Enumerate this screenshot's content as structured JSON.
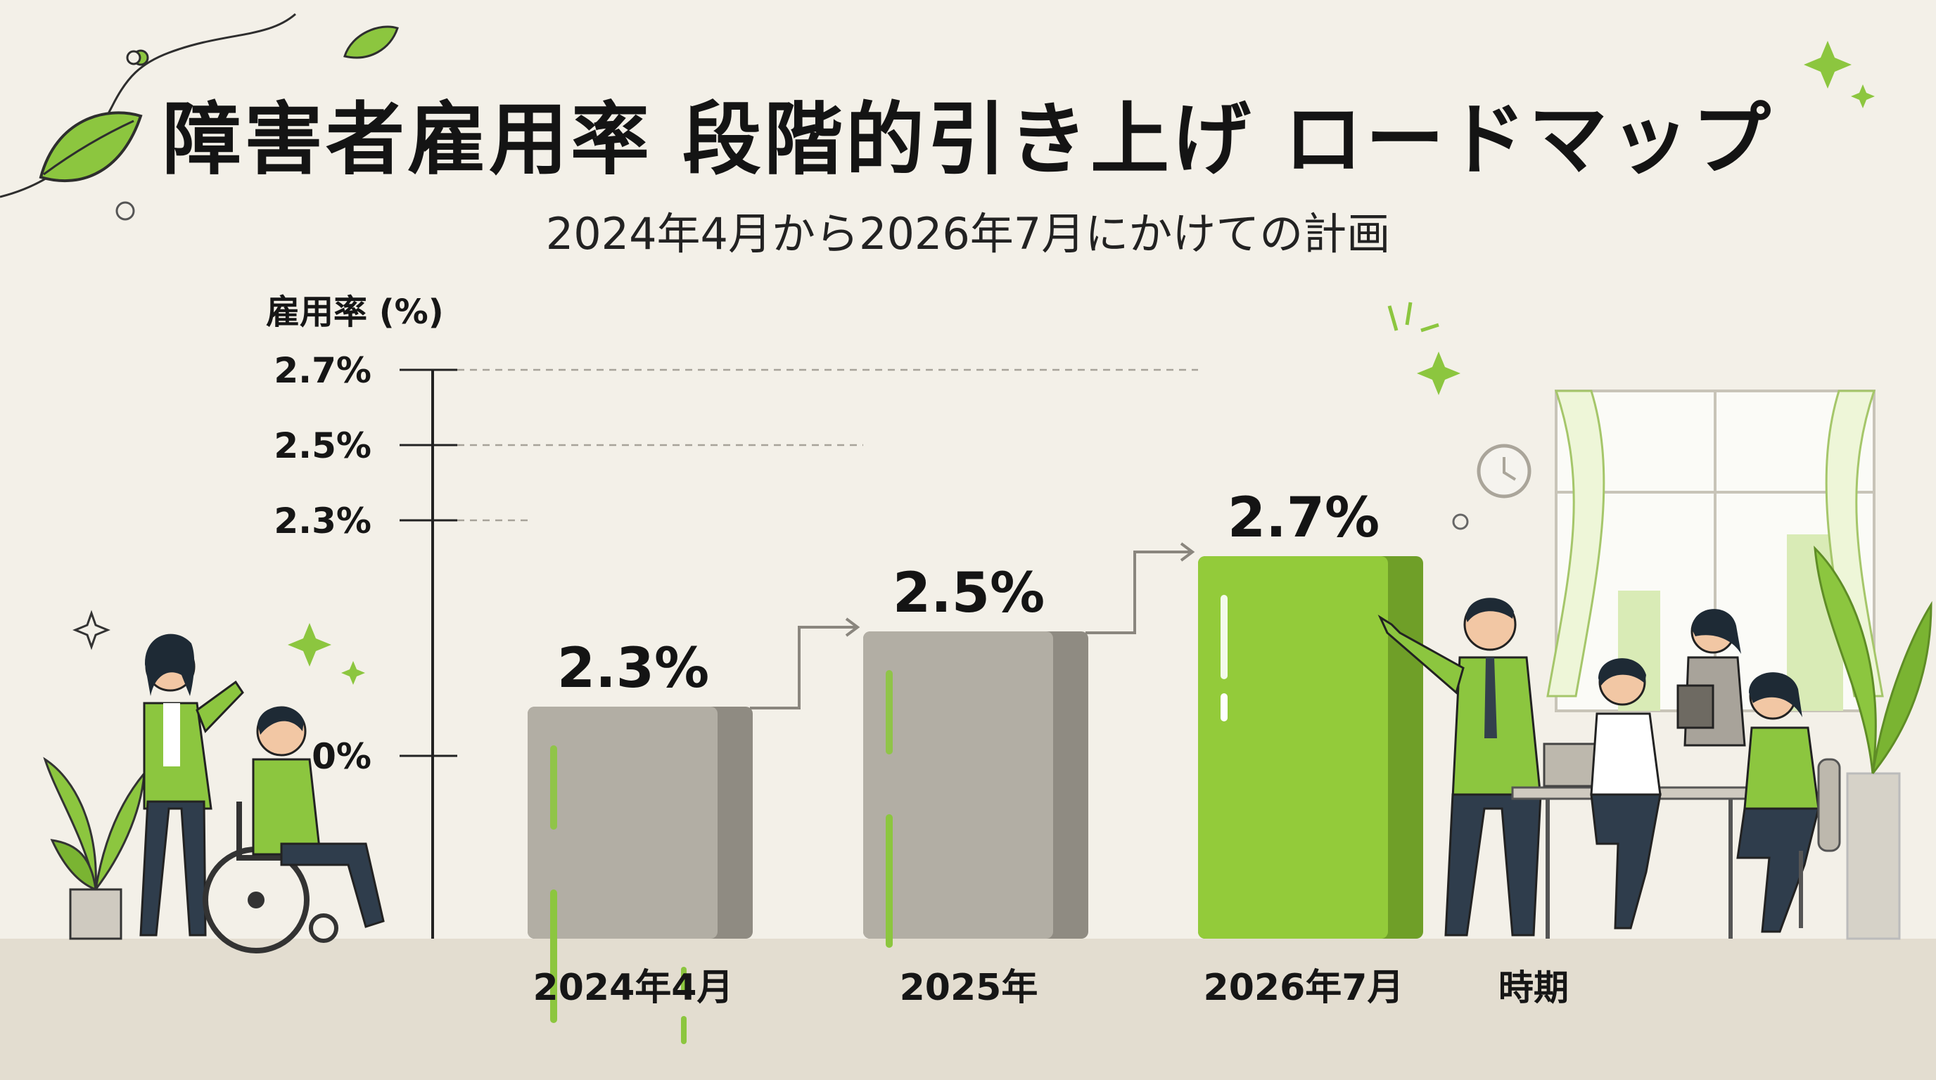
{
  "header": {
    "title": "障害者雇用率 段階的引き上げ ロードマップ",
    "subtitle": "2024年4月から2026年7月にかけての計画"
  },
  "colors": {
    "background": "#f3f0e8",
    "bar_gray": "#b2aea4",
    "bar_gray_side": "#8f8b82",
    "bar_green": "#93cb3a",
    "bar_green_side": "#6f9f28",
    "accent_green": "#8cc63f",
    "floor": "#e3ddd0"
  },
  "chart_data": {
    "type": "bar",
    "title": "障害者雇用率 段階的引き上げ ロードマップ",
    "subtitle": "2024年4月から2026年7月にかけての計画",
    "ylabel": "雇用率 (%)",
    "xlabel": "時期",
    "categories": [
      "2024年4月",
      "2025年",
      "2026年7月"
    ],
    "values": [
      2.3,
      2.5,
      2.7
    ],
    "data_labels": [
      "2.3%",
      "2.5%",
      "2.7%"
    ],
    "ytick_labels": [
      "0%",
      "2.3%",
      "2.5%",
      "2.7%"
    ],
    "ytick_values": [
      0,
      2.3,
      2.5,
      2.7
    ],
    "ylim": [
      0,
      2.7
    ],
    "y_axis_broken": true,
    "grid": false,
    "legend": "none",
    "bar_colors": [
      "gray",
      "gray",
      "green"
    ],
    "step_arrows_between_bars": true
  },
  "illustration": {
    "left_group": "woman-with-wheelchair-user",
    "right_group": "office-team-presenting",
    "icons": [
      "leaf-icon",
      "sparkle-icon",
      "clock-icon",
      "window-icon",
      "potted-plant-icon"
    ]
  }
}
